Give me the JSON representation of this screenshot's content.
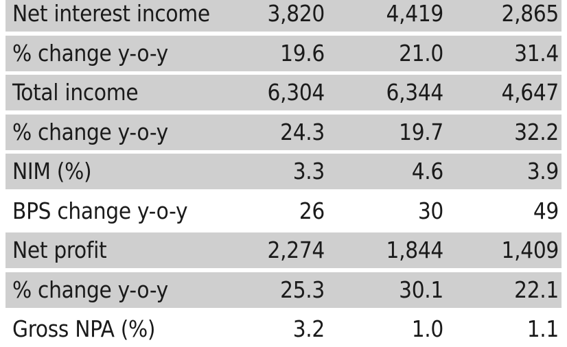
{
  "chart_data": {
    "type": "table",
    "rows": [
      {
        "label": "Net interest income",
        "values": [
          "3,820",
          "4,419",
          "2,865"
        ],
        "shaded": true
      },
      {
        "label": "% change y-o-y",
        "values": [
          "19.6",
          "21.0",
          "31.4"
        ],
        "shaded": true
      },
      {
        "label": "Total income",
        "values": [
          "6,304",
          "6,344",
          "4,647"
        ],
        "shaded": true
      },
      {
        "label": "% change y-o-y",
        "values": [
          "24.3",
          "19.7",
          "32.2"
        ],
        "shaded": true
      },
      {
        "label": "NIM (%)",
        "values": [
          "3.3",
          "4.6",
          "3.9"
        ],
        "shaded": true
      },
      {
        "label": "BPS change y-o-y",
        "values": [
          "26",
          "30",
          "49"
        ],
        "shaded": false
      },
      {
        "label": "Net profit",
        "values": [
          "2,274",
          "1,844",
          "1,409"
        ],
        "shaded": true
      },
      {
        "label": "% change y-o-y",
        "values": [
          "25.3",
          "30.1",
          "22.1"
        ],
        "shaded": true
      },
      {
        "label": "Gross NPA (%)",
        "values": [
          "3.2",
          "1.0",
          "1.1"
        ],
        "shaded": false
      }
    ]
  }
}
